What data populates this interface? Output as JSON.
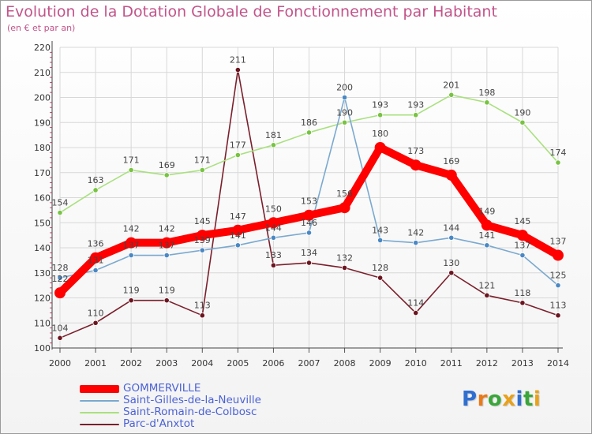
{
  "header": {
    "title": "Evolution de la Dotation Globale de Fonctionnement par Habitant",
    "subtitle": "(en € et par an)"
  },
  "brand": {
    "letters": [
      "P",
      "r",
      "o",
      "x",
      "i",
      "t",
      "i"
    ],
    "colors": [
      "#2f6fd1",
      "#e87a1a",
      "#3aa63a",
      "#e8a11a",
      "#2f6fd1",
      "#3aa63a",
      "#e8a11a"
    ]
  },
  "chart_data": {
    "type": "line",
    "title": "Evolution de la Dotation Globale de Fonctionnement par Habitant",
    "subtitle": "(en € et par an)",
    "xlabel": "",
    "ylabel": "",
    "ylim": [
      100,
      220
    ],
    "yticks": [
      100,
      110,
      120,
      130,
      140,
      150,
      160,
      170,
      180,
      190,
      200,
      210,
      220
    ],
    "grid": true,
    "legend_position": "bottom-left",
    "categories": [
      "2000",
      "2001",
      "2002",
      "2003",
      "2004",
      "2005",
      "2006",
      "2007",
      "2008",
      "2009",
      "2010",
      "2011",
      "2012",
      "2013",
      "2014"
    ],
    "series": [
      {
        "name": "Parc-d'Anxtot",
        "color": "#7a1f2b",
        "dot": "#6b1520",
        "values": [
          104,
          110,
          119,
          119,
          113,
          211,
          133,
          134,
          132,
          128,
          114,
          130,
          121,
          118,
          113
        ],
        "labels": [
          "104",
          "110",
          "119",
          "119",
          "113",
          "211",
          "133",
          "134",
          "132",
          "128",
          "114",
          "130",
          "121",
          "118",
          "113"
        ]
      },
      {
        "name": "Saint-Romain-de-Colbosc",
        "color": "#a9e07e",
        "dot": "#78c342",
        "values": [
          154,
          163,
          171,
          169,
          171,
          177,
          181,
          186,
          190,
          193,
          193,
          201,
          198,
          190,
          174
        ],
        "labels": [
          "154",
          "163",
          "171",
          "169",
          "171",
          "177",
          "181",
          "186",
          "190",
          "193",
          "193",
          "201",
          "198",
          "190",
          "174"
        ]
      },
      {
        "name": "Saint-Gilles-de-la-Neuville",
        "color": "#7aa9cf",
        "dot": "#4a88c4",
        "values": [
          128,
          131,
          137,
          137,
          139,
          141,
          144,
          146,
          200,
          143,
          142,
          144,
          141,
          137,
          125
        ],
        "labels": [
          "128",
          "131",
          "137",
          "137",
          "139",
          "141",
          "144",
          "146",
          "200",
          "143",
          "142",
          "144",
          "141",
          "137",
          "125"
        ]
      },
      {
        "name": "GOMMERVILLE",
        "color": "#ff0000",
        "dot": "#ff0000",
        "values": [
          122,
          136,
          142,
          142,
          145,
          147,
          150,
          153,
          156,
          180,
          173,
          169,
          149,
          145,
          137
        ],
        "labels": [
          "122",
          "136",
          "142",
          "142",
          "145",
          "147",
          "150",
          "153",
          "156",
          "180",
          "173",
          "169",
          "149",
          "145",
          "137"
        ]
      }
    ],
    "legend": [
      {
        "name": "GOMMERVILLE",
        "color": "#ff0000"
      },
      {
        "name": "Saint-Gilles-de-la-Neuville",
        "color": "#7aa9cf"
      },
      {
        "name": "Saint-Romain-de-Colbosc",
        "color": "#a9e07e"
      },
      {
        "name": "Parc-d'Anxtot",
        "color": "#7a1f2b"
      }
    ]
  }
}
